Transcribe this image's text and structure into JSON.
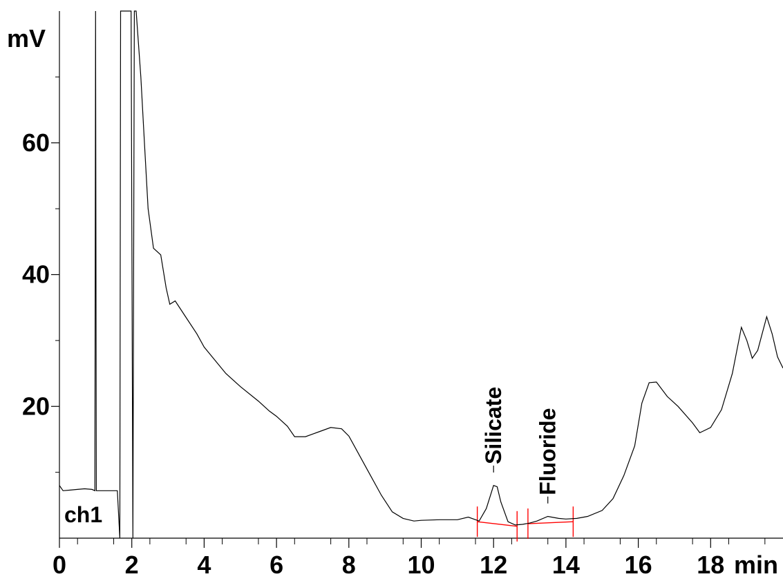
{
  "chart_data": {
    "type": "line",
    "title": "",
    "xlabel": "min",
    "ylabel": "mV",
    "channel": "ch1",
    "xlim": [
      0,
      20
    ],
    "ylim": [
      0,
      80
    ],
    "x_ticks": [
      0,
      2,
      4,
      6,
      8,
      10,
      12,
      14,
      16,
      18
    ],
    "x_tick_labels": [
      "0",
      "2",
      "4",
      "6",
      "8",
      "10",
      "12",
      "14",
      "16",
      "18"
    ],
    "y_ticks": [
      20,
      40,
      60
    ],
    "y_tick_labels": [
      "20",
      "40",
      "60"
    ],
    "grid": false,
    "colors": {
      "trace": "#000000",
      "integration": "#ff0000",
      "axis": "#000000"
    },
    "series": [
      {
        "points": [
          [
            0.0,
            8.0
          ],
          [
            0.1,
            7.2
          ],
          [
            0.3,
            7.3
          ],
          [
            0.5,
            7.4
          ],
          [
            0.7,
            7.5
          ],
          [
            0.9,
            7.4
          ],
          [
            0.98,
            7.2
          ],
          [
            1.0,
            80
          ],
          [
            1.02,
            7.2
          ],
          [
            1.6,
            7.2
          ],
          [
            1.67,
            0
          ],
          [
            1.69,
            80
          ],
          [
            1.98,
            80
          ],
          [
            2.03,
            0
          ],
          [
            2.07,
            80
          ],
          [
            2.12,
            80
          ],
          [
            2.25,
            70
          ],
          [
            2.35,
            60
          ],
          [
            2.45,
            50
          ],
          [
            2.6,
            44
          ],
          [
            2.8,
            43
          ],
          [
            2.95,
            38
          ],
          [
            3.05,
            35.5
          ],
          [
            3.2,
            36
          ],
          [
            3.5,
            33.5
          ],
          [
            3.8,
            31
          ],
          [
            4.0,
            29
          ],
          [
            4.3,
            27
          ],
          [
            4.6,
            25
          ],
          [
            5.0,
            23
          ],
          [
            5.5,
            20.8
          ],
          [
            5.8,
            19.3
          ],
          [
            6.0,
            18.5
          ],
          [
            6.3,
            17.0
          ],
          [
            6.5,
            15.4
          ],
          [
            6.8,
            15.4
          ],
          [
            7.0,
            15.8
          ],
          [
            7.2,
            16.2
          ],
          [
            7.5,
            16.8
          ],
          [
            7.8,
            16.6
          ],
          [
            8.0,
            15.5
          ],
          [
            8.3,
            12.5
          ],
          [
            8.6,
            9.5
          ],
          [
            8.9,
            6.5
          ],
          [
            9.2,
            4.0
          ],
          [
            9.5,
            3.0
          ],
          [
            9.8,
            2.6
          ],
          [
            10.0,
            2.7
          ],
          [
            10.5,
            2.8
          ],
          [
            11.0,
            2.8
          ],
          [
            11.3,
            3.2
          ],
          [
            11.6,
            2.6
          ],
          [
            11.8,
            4.5
          ],
          [
            12.0,
            8.0
          ],
          [
            12.1,
            7.8
          ],
          [
            12.2,
            5.5
          ],
          [
            12.4,
            2.5
          ],
          [
            12.6,
            2.0
          ],
          [
            12.8,
            2.1
          ],
          [
            13.0,
            2.3
          ],
          [
            13.2,
            2.6
          ],
          [
            13.5,
            3.3
          ],
          [
            13.8,
            3.0
          ],
          [
            14.0,
            2.9
          ],
          [
            14.3,
            3.0
          ],
          [
            14.6,
            3.3
          ],
          [
            15.0,
            4.2
          ],
          [
            15.3,
            6.0
          ],
          [
            15.6,
            9.5
          ],
          [
            15.9,
            14.0
          ],
          [
            16.1,
            20.5
          ],
          [
            16.3,
            23.6
          ],
          [
            16.5,
            23.7
          ],
          [
            16.8,
            21.5
          ],
          [
            17.1,
            20.0
          ],
          [
            17.5,
            17.5
          ],
          [
            17.7,
            16.0
          ],
          [
            18.0,
            16.8
          ],
          [
            18.3,
            19.5
          ],
          [
            18.6,
            25.0
          ],
          [
            18.85,
            32.0
          ],
          [
            19.0,
            30.0
          ],
          [
            19.15,
            27.3
          ],
          [
            19.3,
            28.5
          ],
          [
            19.55,
            33.6
          ],
          [
            19.7,
            31.0
          ],
          [
            19.85,
            27.5
          ],
          [
            20.0,
            25.8
          ]
        ]
      }
    ],
    "peaks": [
      {
        "label": "Silicate",
        "x": 12.0,
        "y": 8.5
      },
      {
        "label": "Fluoride",
        "x": 13.5,
        "y": 3.8
      }
    ],
    "integration_baselines": [
      {
        "start": [
          11.55,
          2.5
        ],
        "end": [
          12.65,
          1.8
        ]
      },
      {
        "start": [
          12.95,
          2.2
        ],
        "end": [
          14.2,
          2.5
        ]
      }
    ],
    "integration_markers": [
      {
        "x": 11.55,
        "y": 2.5
      },
      {
        "x": 12.65,
        "y": 1.8
      },
      {
        "x": 12.95,
        "y": 2.2
      },
      {
        "x": 14.2,
        "y": 2.5
      }
    ]
  }
}
